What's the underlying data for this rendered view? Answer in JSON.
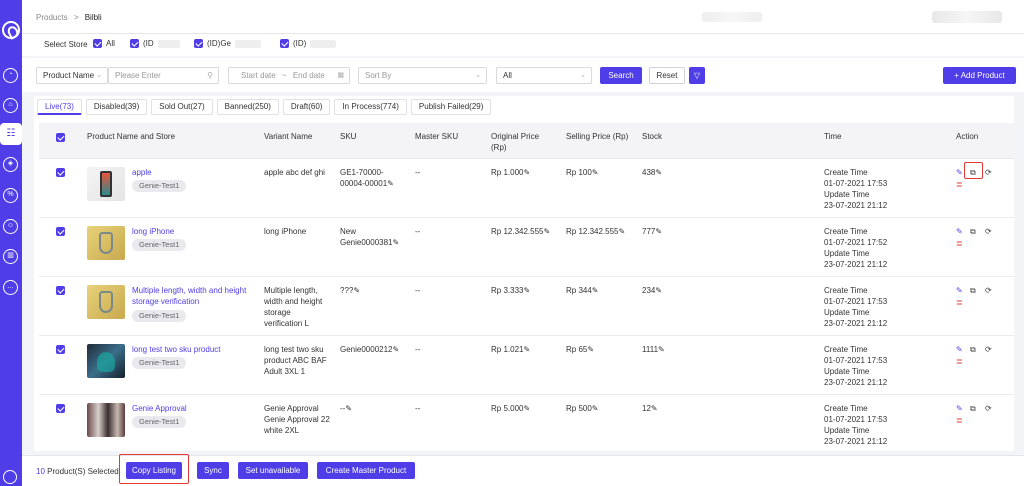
{
  "breadcrumb": {
    "root": "Products",
    "sep": ">",
    "current": "Bilbli"
  },
  "store_filter": {
    "label": "Select Store",
    "all": "All",
    "opt1": "(ID",
    "opt2": "(ID)Ge",
    "opt3": "(ID)"
  },
  "filters": {
    "field_select": "Product Name",
    "search_placeholder": "Please Enter",
    "start_date": "Start date",
    "date_sep": "~",
    "end_date": "End date",
    "sort_by": "Sort By",
    "status_select": "All",
    "search_button": "Search",
    "reset_button": "Reset",
    "add_button": "+ Add Product"
  },
  "tabs": [
    "Live(73)",
    "Disabled(39)",
    "Sold Out(27)",
    "Banned(250)",
    "Draft(60)",
    "In Process(774)",
    "Publish Failed(29)"
  ],
  "columns": {
    "name": "Product Name and Store",
    "variant": "Variant Name",
    "sku": "SKU",
    "master_sku": "Master SKU",
    "original_price": "Original Price (Rp)",
    "selling_price": "Selling Price (Rp)",
    "stock": "Stock",
    "time": "Time",
    "action": "Action"
  },
  "rows": [
    {
      "name": "apple",
      "store": "Genie-Test1",
      "variant": "apple abc def ghi",
      "sku": "GE1-70000-00004-00001",
      "master_sku": "--",
      "original_price": "Rp 1.000",
      "selling_price": "Rp 100",
      "stock": "438",
      "create_label": "Create Time",
      "create_time": "01-07-2021 17:53",
      "update_label": "Update Time",
      "update_time": "23-07-2021 21:12"
    },
    {
      "name": "long iPhone",
      "store": "Genie-Test1",
      "variant": "long iPhone",
      "sku": "New Genie0000381",
      "master_sku": "--",
      "original_price": "Rp 12.342.555",
      "selling_price": "Rp 12.342.555",
      "stock": "777",
      "create_label": "Create Time",
      "create_time": "01-07-2021 17:52",
      "update_label": "Update Time",
      "update_time": "23-07-2021 21:12"
    },
    {
      "name": "Multiple length, width and height storage verification",
      "store": "Genie-Test1",
      "variant": "Multiple length, width and height storage verification L",
      "sku": "???",
      "master_sku": "--",
      "original_price": "Rp 3.333",
      "selling_price": "Rp 344",
      "stock": "234",
      "create_label": "Create Time",
      "create_time": "01-07-2021 17:53",
      "update_label": "Update Time",
      "update_time": "23-07-2021 21:12"
    },
    {
      "name": "long test two sku product",
      "store": "Genie-Test1",
      "variant": "long test two sku product ABC BAF Adult 3XL 1",
      "sku": "Genie0000212",
      "master_sku": "--",
      "original_price": "Rp 1.021",
      "selling_price": "Rp 65",
      "stock": "1111",
      "create_label": "Create Time",
      "create_time": "01-07-2021 17:53",
      "update_label": "Update Time",
      "update_time": "23-07-2021 21:12"
    },
    {
      "name": "Genie Approval",
      "store": "Genie-Test1",
      "variant": "Genie Approval Genie Approval 22 white 2XL",
      "sku": "--",
      "master_sku": "--",
      "original_price": "Rp 5.000",
      "selling_price": "Rp 500",
      "stock": "12",
      "create_label": "Create Time",
      "create_time": "01-07-2021 17:53",
      "update_label": "Update Time",
      "update_time": "23-07-2021 21:12"
    }
  ],
  "bottom": {
    "selected_count": "10",
    "selected_text": "Product(S) Selected",
    "copy_listing": "Copy Listing",
    "sync": "Sync",
    "set_unavailable": "Set unavailable",
    "create_master": "Create Master Product"
  },
  "colors": {
    "accent": "#4f3ee8",
    "danger": "#e53935"
  }
}
